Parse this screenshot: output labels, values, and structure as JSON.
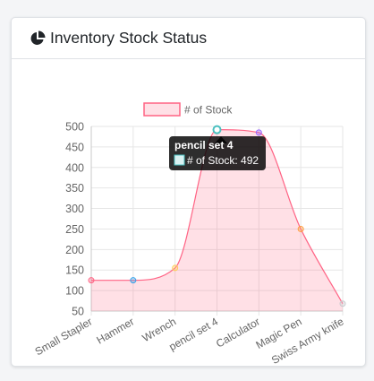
{
  "card": {
    "title": "Inventory Stock Status",
    "icon": "pie-chart-icon"
  },
  "tooltip": {
    "title": "pencil set 4",
    "label": "# of Stock: 492"
  },
  "chart_data": {
    "type": "area",
    "categories": [
      "Small Stapler",
      "Hammer",
      "Wrench",
      "pencil set 4",
      "Calculator",
      "Magic Pen",
      "Swiss Army knife"
    ],
    "series": [
      {
        "name": "# of Stock",
        "values": [
          125,
          125,
          155,
          492,
          485,
          250,
          68
        ]
      }
    ],
    "ylim": [
      50,
      500
    ],
    "yticks": [
      50,
      100,
      150,
      200,
      250,
      300,
      350,
      400,
      450,
      500
    ],
    "grid": true,
    "legend": "top",
    "colors": {
      "line": "#ff6384",
      "fill": "rgba(255,99,132,0.2)",
      "points": [
        "#ff6384",
        "#36a2eb",
        "#ffcd56",
        "#4bc0c0",
        "#9966ff",
        "#ff9f40",
        "#c9cbcf"
      ]
    }
  }
}
